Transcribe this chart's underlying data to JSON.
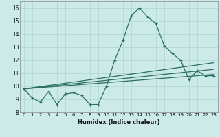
{
  "title": "",
  "xlabel": "Humidex (Indice chaleur)",
  "bg_color": "#cceae7",
  "grid_color": "#add6d2",
  "line_color": "#2a6e63",
  "xlim": [
    -0.5,
    23.5
  ],
  "ylim": [
    8.0,
    16.5
  ],
  "yticks": [
    8,
    9,
    10,
    11,
    12,
    13,
    14,
    15,
    16
  ],
  "xticks": [
    0,
    1,
    2,
    3,
    4,
    5,
    6,
    7,
    8,
    9,
    10,
    11,
    12,
    13,
    14,
    15,
    16,
    17,
    18,
    19,
    20,
    21,
    22,
    23
  ],
  "line1_x": [
    0,
    1,
    2,
    3,
    4,
    5,
    6,
    7,
    8,
    9,
    10,
    11,
    12,
    13,
    14,
    15,
    16,
    17,
    18,
    19,
    20,
    21,
    22,
    23
  ],
  "line1_y": [
    9.8,
    9.1,
    8.8,
    9.6,
    8.6,
    9.4,
    9.5,
    9.3,
    8.6,
    8.6,
    10.0,
    12.0,
    13.5,
    15.4,
    16.0,
    15.3,
    14.8,
    13.1,
    12.5,
    12.0,
    10.5,
    11.2,
    10.8,
    10.8
  ],
  "line2_x": [
    0,
    23
  ],
  "line2_y": [
    9.8,
    10.9
  ],
  "line3_x": [
    0,
    23
  ],
  "line3_y": [
    9.8,
    11.3
  ],
  "line4_x": [
    0,
    23
  ],
  "line4_y": [
    9.8,
    11.8
  ]
}
